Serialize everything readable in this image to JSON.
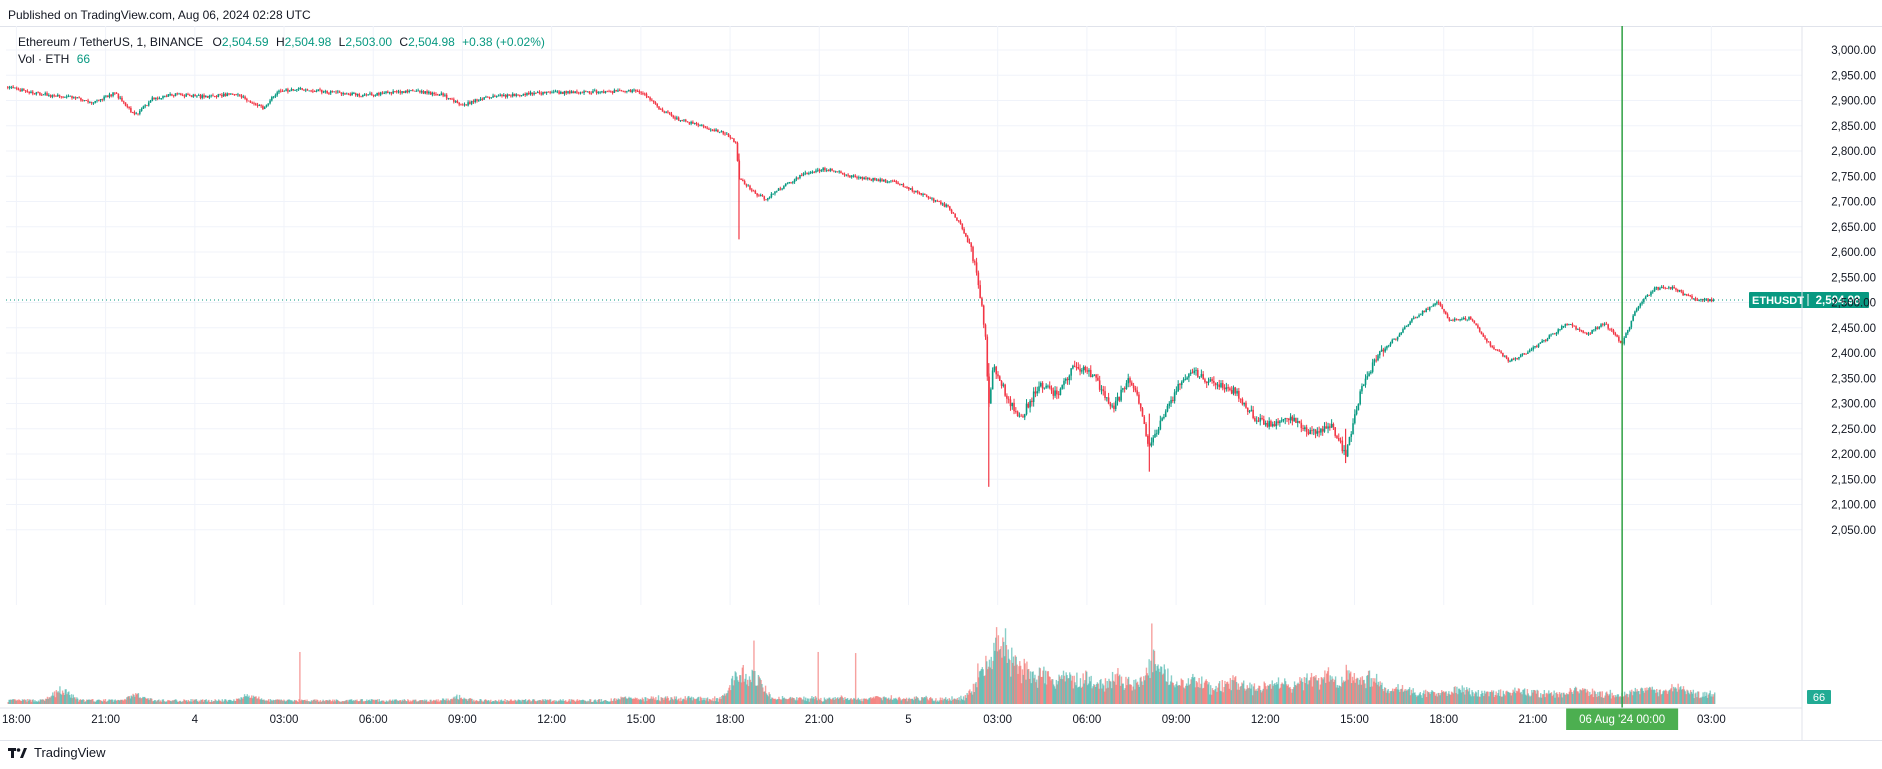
{
  "header": {
    "published": "Published on TradingView.com, Aug 06, 2024 02:28 UTC"
  },
  "legend": {
    "symbol": "Ethereum / TetherUS, 1, BINANCE",
    "o_label": "O",
    "o_value": "2,504.59",
    "h_label": "H",
    "h_value": "2,504.98",
    "l_label": "L",
    "l_value": "2,503.00",
    "c_label": "C",
    "c_value": "2,504.98",
    "change": "+0.38 (+0.02%)",
    "vol_label": "Vol · ETH",
    "vol_value": "66"
  },
  "footer": {
    "brand": "TradingView"
  },
  "colors": {
    "up": "#089981",
    "down": "#f23645",
    "vol_up": "#26a69a",
    "vol_down": "#ef5350",
    "crosshair": "#2ea043",
    "accent": "#22ab94"
  },
  "chart_data": {
    "type": "candlestick",
    "symbol": "ETHUSDT",
    "interval": "1",
    "ylim": [
      2000,
      3000
    ],
    "y_ticks": [
      "3,000.00",
      "2,950.00",
      "2,900.00",
      "2,850.00",
      "2,800.00",
      "2,750.00",
      "2,700.00",
      "2,650.00",
      "2,600.00",
      "2,550.00",
      "2,500.00",
      "2,450.00",
      "2,400.00",
      "2,350.00",
      "2,300.00",
      "2,250.00",
      "2,200.00",
      "2,150.00",
      "2,100.00",
      "2,050.00"
    ],
    "y_tick_values": [
      3000,
      2950,
      2900,
      2850,
      2800,
      2750,
      2700,
      2650,
      2600,
      2550,
      2500,
      2450,
      2400,
      2350,
      2300,
      2250,
      2200,
      2150,
      2100,
      2050
    ],
    "x_ticks": [
      "18:00",
      "21:00",
      "4",
      "03:00",
      "06:00",
      "09:00",
      "12:00",
      "15:00",
      "18:00",
      "21:00",
      "5",
      "03:00",
      "06:00",
      "09:00",
      "12:00",
      "15:00",
      "18:00",
      "21:00",
      "03:00"
    ],
    "x_tick_hours": [
      0,
      3,
      6,
      9,
      12,
      15,
      18,
      21,
      24,
      27,
      30,
      33,
      36,
      39,
      42,
      45,
      48,
      51,
      57
    ],
    "x_range_hours": [
      -0.35,
      58.3
    ],
    "last_price": 2504.98,
    "last_label": "ETHUSDT",
    "last_value": "2,504.98",
    "crosshair_label": "06 Aug '24   00:00",
    "crosshair_hour": 54,
    "volume_badge": "66",
    "price_path": [
      [
        -0.3,
        2927
      ],
      [
        0.5,
        2915
      ],
      [
        1.2,
        2910
      ],
      [
        2.0,
        2906
      ],
      [
        2.6,
        2895
      ],
      [
        3.3,
        2915
      ],
      [
        4.0,
        2870
      ],
      [
        4.6,
        2905
      ],
      [
        5.4,
        2912
      ],
      [
        6.4,
        2907
      ],
      [
        7.4,
        2913
      ],
      [
        8.3,
        2885
      ],
      [
        8.8,
        2918
      ],
      [
        9.6,
        2923
      ],
      [
        10.5,
        2917
      ],
      [
        11.7,
        2910
      ],
      [
        12.6,
        2916
      ],
      [
        13.3,
        2919
      ],
      [
        14.3,
        2912
      ],
      [
        15.0,
        2890
      ],
      [
        15.6,
        2904
      ],
      [
        16.8,
        2912
      ],
      [
        18.5,
        2916
      ],
      [
        19.7,
        2917
      ],
      [
        20.9,
        2920
      ],
      [
        21.3,
        2905
      ],
      [
        21.7,
        2880
      ],
      [
        22.2,
        2865
      ],
      [
        23.0,
        2850
      ],
      [
        23.9,
        2833
      ],
      [
        24.2,
        2815
      ],
      [
        24.3,
        2745
      ],
      [
        24.9,
        2715
      ],
      [
        25.2,
        2705
      ],
      [
        25.8,
        2730
      ],
      [
        26.5,
        2755
      ],
      [
        27.2,
        2765
      ],
      [
        28.1,
        2750
      ],
      [
        28.9,
        2743
      ],
      [
        29.6,
        2738
      ],
      [
        30.4,
        2715
      ],
      [
        31.3,
        2690
      ],
      [
        31.7,
        2660
      ],
      [
        32.1,
        2605
      ],
      [
        32.3,
        2555
      ],
      [
        32.45,
        2500
      ],
      [
        32.6,
        2430
      ],
      [
        32.7,
        2290
      ],
      [
        32.85,
        2370
      ],
      [
        33.1,
        2345
      ],
      [
        33.4,
        2300
      ],
      [
        33.8,
        2275
      ],
      [
        34.4,
        2335
      ],
      [
        35.0,
        2320
      ],
      [
        35.6,
        2375
      ],
      [
        36.2,
        2355
      ],
      [
        36.9,
        2290
      ],
      [
        37.4,
        2350
      ],
      [
        37.8,
        2300
      ],
      [
        38.1,
        2210
      ],
      [
        38.6,
        2280
      ],
      [
        39.0,
        2325
      ],
      [
        39.5,
        2370
      ],
      [
        40.2,
        2340
      ],
      [
        41.0,
        2325
      ],
      [
        41.6,
        2275
      ],
      [
        42.2,
        2255
      ],
      [
        42.8,
        2275
      ],
      [
        43.5,
        2240
      ],
      [
        44.2,
        2260
      ],
      [
        44.7,
        2200
      ],
      [
        45.2,
        2320
      ],
      [
        45.8,
        2400
      ],
      [
        46.4,
        2430
      ],
      [
        47.0,
        2470
      ],
      [
        47.8,
        2500
      ],
      [
        48.2,
        2465
      ],
      [
        48.9,
        2470
      ],
      [
        49.5,
        2420
      ],
      [
        50.2,
        2385
      ],
      [
        50.8,
        2400
      ],
      [
        51.5,
        2430
      ],
      [
        52.2,
        2460
      ],
      [
        52.8,
        2435
      ],
      [
        53.4,
        2460
      ],
      [
        54.0,
        2418
      ],
      [
        54.5,
        2490
      ],
      [
        55.1,
        2528
      ],
      [
        55.7,
        2530
      ],
      [
        56.1,
        2515
      ],
      [
        56.6,
        2505
      ],
      [
        57.1,
        2505
      ]
    ],
    "volume_spikes": [
      [
        1.5,
        15
      ],
      [
        4.0,
        8
      ],
      [
        7.8,
        7
      ],
      [
        14.8,
        5
      ],
      [
        20.5,
        5
      ],
      [
        24.3,
        40
      ],
      [
        24.8,
        32
      ],
      [
        32.4,
        24
      ],
      [
        32.6,
        28
      ],
      [
        32.8,
        46
      ],
      [
        33.0,
        68
      ],
      [
        33.2,
        60
      ],
      [
        33.5,
        40
      ],
      [
        33.9,
        28
      ],
      [
        34.5,
        22
      ],
      [
        35.3,
        18
      ],
      [
        36.0,
        12
      ],
      [
        37.0,
        14
      ],
      [
        38.0,
        18
      ],
      [
        38.2,
        36
      ],
      [
        38.5,
        24
      ],
      [
        39.5,
        10
      ],
      [
        41.0,
        8
      ],
      [
        42.3,
        8
      ],
      [
        43.5,
        12
      ],
      [
        44.0,
        18
      ],
      [
        44.8,
        20
      ],
      [
        45.5,
        14
      ],
      [
        46.5,
        10
      ],
      [
        48.5,
        7
      ],
      [
        50.5,
        6
      ],
      [
        52.5,
        6
      ],
      [
        54.8,
        8
      ],
      [
        55.8,
        9
      ]
    ]
  }
}
